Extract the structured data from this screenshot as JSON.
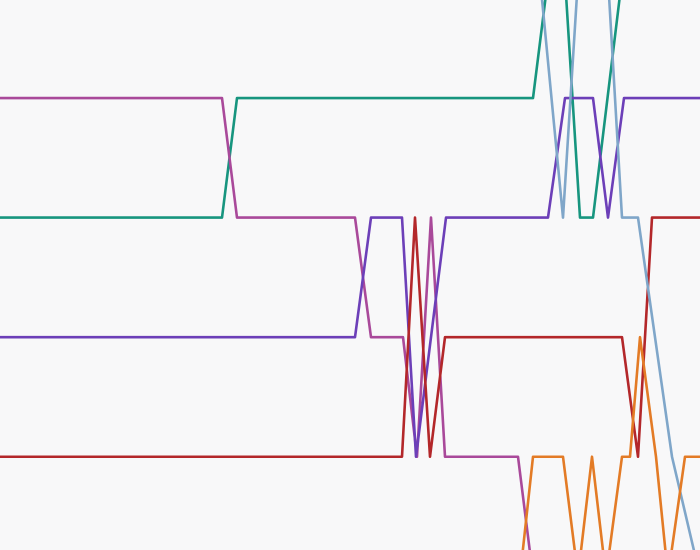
{
  "chart_data": {
    "type": "line",
    "xlim": [
      0,
      700
    ],
    "ylim": [
      0.18,
      4.78
    ],
    "y_inverted": true,
    "series": [
      {
        "color": "#17957f",
        "x": [
          0,
          222,
          237,
          533,
          548,
          565,
          580,
          593,
          622
        ],
        "values": [
          2,
          2,
          1,
          1,
          0,
          0,
          2,
          2,
          0
        ]
      },
      {
        "color": "#a9499a",
        "x": [
          0,
          222,
          237,
          355,
          371,
          403,
          417,
          431,
          445,
          518,
          533
        ],
        "values": [
          1,
          1,
          2,
          2,
          3,
          3,
          4,
          2,
          4,
          4,
          5
        ]
      },
      {
        "color": "#6c3fb8",
        "x": [
          0,
          355,
          371,
          402,
          416,
          446,
          548,
          565,
          593,
          608,
          624,
          700
        ],
        "values": [
          3,
          3,
          2,
          2,
          4,
          2,
          2,
          1,
          1,
          2,
          1,
          1
        ]
      },
      {
        "color": "#b3272a",
        "x": [
          0,
          402,
          415,
          430,
          445,
          622,
          638,
          652,
          700
        ],
        "values": [
          4,
          4,
          2,
          4,
          3,
          3,
          4,
          2,
          2
        ]
      },
      {
        "color": "#7fa6c9",
        "x": [
          540,
          563,
          578,
          608,
          622,
          638,
          655,
          672,
          700
        ],
        "values": [
          0,
          2,
          0,
          0,
          2,
          2,
          3,
          4,
          5
        ]
      },
      {
        "color": "#e37b26",
        "x": [
          520,
          533,
          563,
          578,
          592,
          606,
          622,
          630,
          640,
          656,
          668,
          685,
          700
        ],
        "values": [
          5,
          4,
          4,
          5,
          4,
          5,
          4,
          4,
          3,
          4,
          5,
          4,
          4
        ]
      }
    ]
  }
}
